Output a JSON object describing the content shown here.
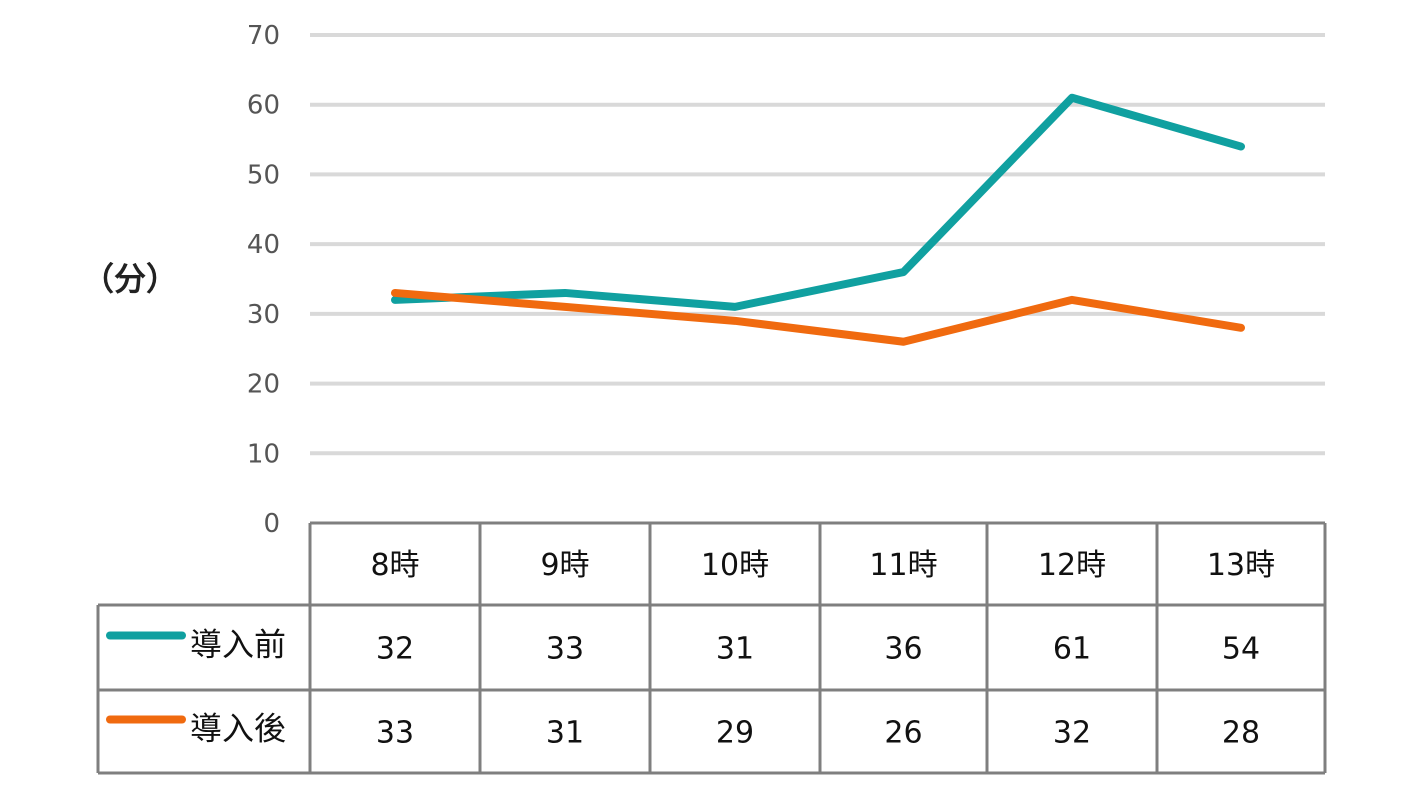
{
  "chart_data": {
    "type": "line",
    "ylabel": "（分）",
    "ylim": [
      0,
      70
    ],
    "yticks": [
      0,
      10,
      20,
      30,
      40,
      50,
      60,
      70
    ],
    "categories": [
      "8時",
      "9時",
      "10時",
      "11時",
      "12時",
      "13時"
    ],
    "grid": true,
    "legend": "data-table-left",
    "series": [
      {
        "name": "導入前",
        "color": "#10A0A0",
        "values": [
          32,
          33,
          31,
          36,
          61,
          54
        ]
      },
      {
        "name": "導入後",
        "color": "#F06A0F",
        "values": [
          33,
          31,
          29,
          26,
          32,
          28
        ]
      }
    ]
  }
}
